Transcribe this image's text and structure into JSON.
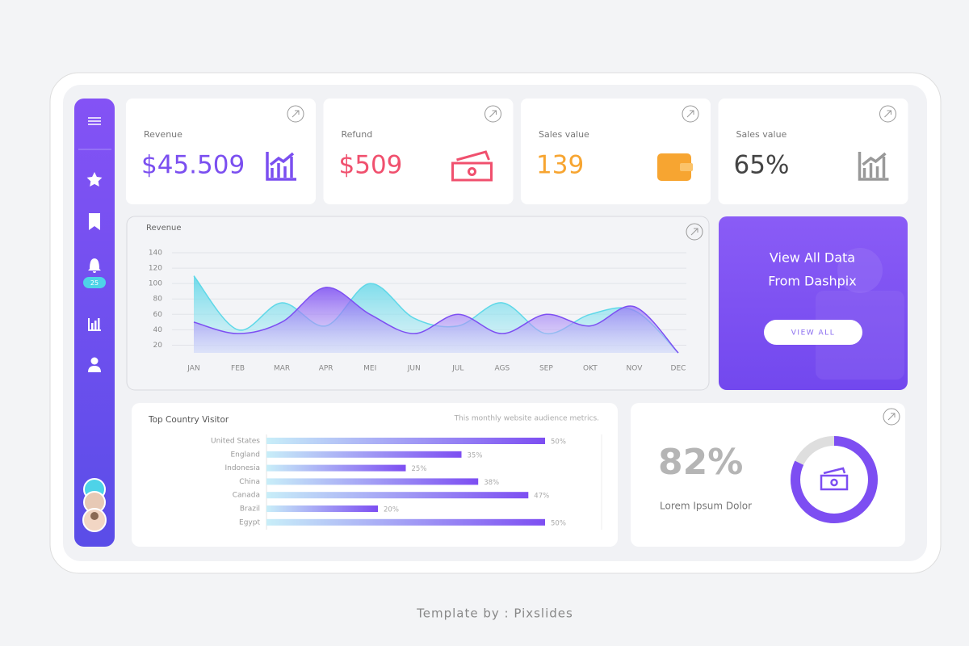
{
  "sidebar": {
    "badge": "25"
  },
  "stats": [
    {
      "label": "Revenue",
      "value": "$45.509",
      "color": "#7b4ff0"
    },
    {
      "label": "Refund",
      "value": "$509",
      "color": "#f0506e"
    },
    {
      "label": "Sales value",
      "value": "139",
      "color": "#f7a531"
    },
    {
      "label": "Sales value",
      "value": "65%",
      "color": "#444444"
    }
  ],
  "promo": {
    "title_lines": [
      "View All Data",
      "From Dashpix"
    ],
    "button": "VIEW ALL"
  },
  "footer": "Template by : Pixslides",
  "chart_data": [
    {
      "type": "area",
      "title": "Revenue",
      "categories": [
        "JAN",
        "FEB",
        "MAR",
        "APR",
        "MEI",
        "JUN",
        "JUL",
        "AGS",
        "SEP",
        "OKT",
        "NOV",
        "DEC"
      ],
      "series": [
        {
          "color": "#5fd8e8",
          "values": [
            110,
            40,
            75,
            45,
            100,
            55,
            45,
            75,
            35,
            60,
            65,
            10
          ]
        },
        {
          "color": "#7d4ef2",
          "values": [
            50,
            35,
            50,
            95,
            60,
            35,
            60,
            35,
            60,
            45,
            70,
            10
          ]
        }
      ],
      "ylim": [
        10,
        140
      ],
      "yticks": [
        20,
        40,
        60,
        80,
        100,
        120,
        140
      ],
      "grid": true
    },
    {
      "type": "bar",
      "orientation": "horizontal",
      "title": "Top Country Visitor",
      "subtitle": "This monthly website audience metrics.",
      "categories": [
        "United States",
        "England",
        "Indonesia",
        "China",
        "Canada",
        "Brazil",
        "Egypt"
      ],
      "values": [
        50,
        35,
        25,
        38,
        47,
        20,
        50
      ],
      "value_labels": [
        "50%",
        "35%",
        "25%",
        "38%",
        "47%",
        "20%",
        "50%"
      ],
      "xlim": [
        0,
        60
      ],
      "color": "#7d4ef2"
    },
    {
      "type": "donut",
      "value": 82,
      "value_label": "82%",
      "caption": "Lorem Ipsum Dolor",
      "range": [
        0,
        100
      ],
      "color": "#7d4ef2"
    }
  ]
}
